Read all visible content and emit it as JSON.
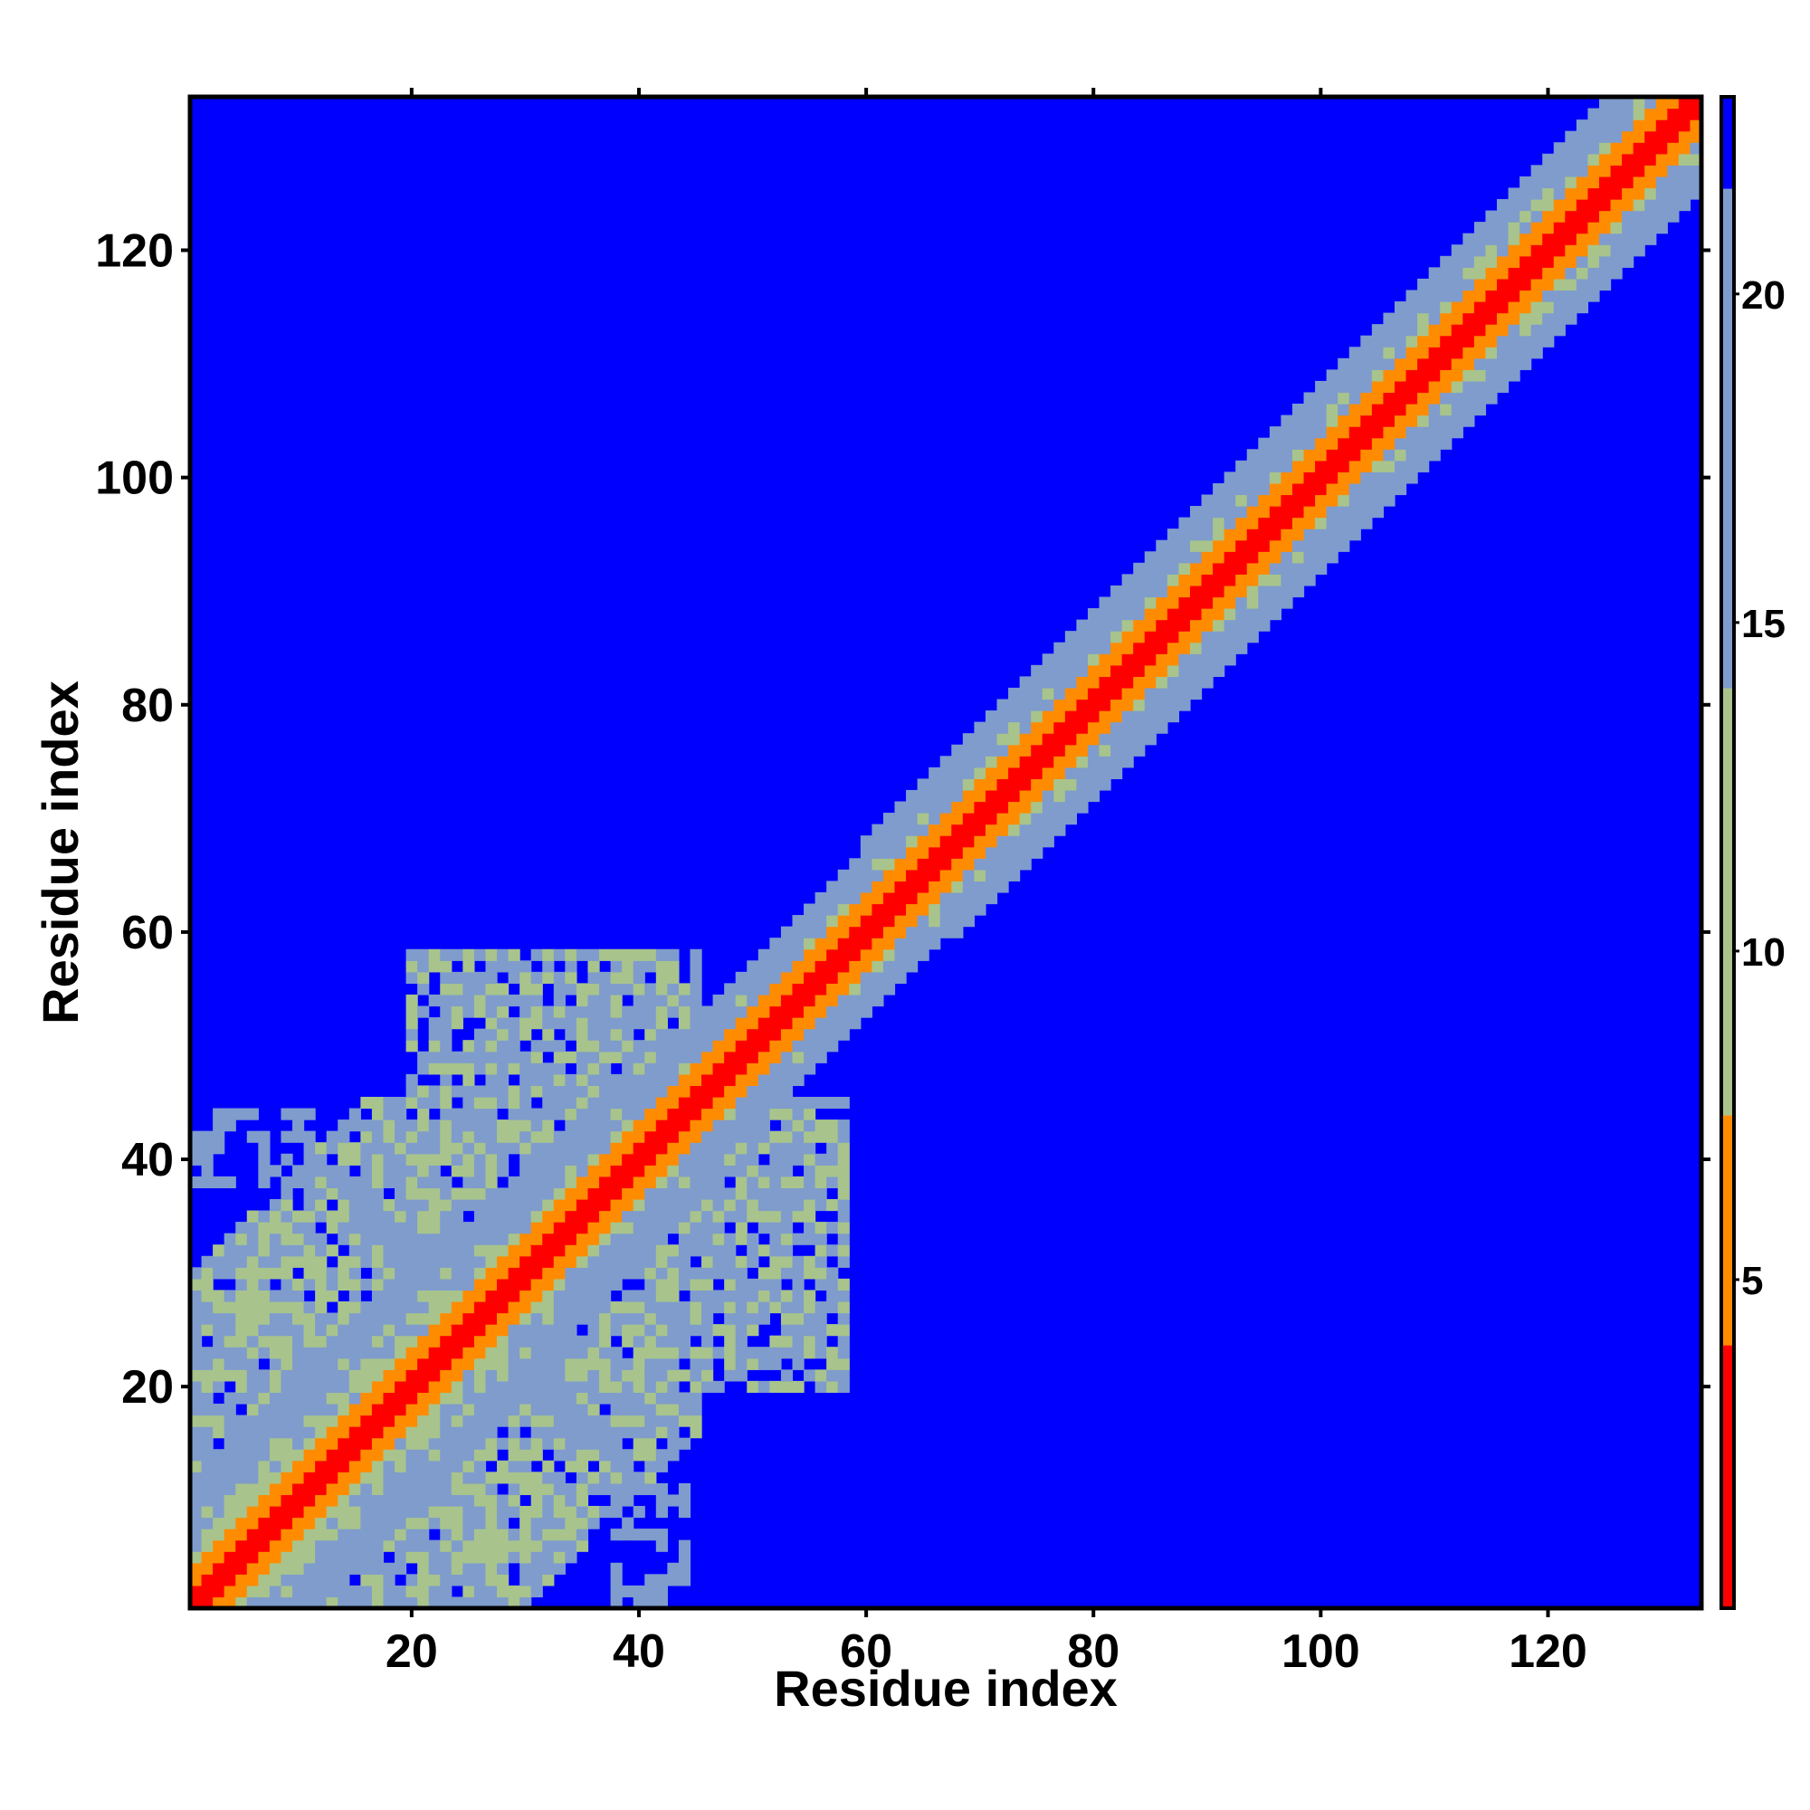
{
  "chart_data": {
    "type": "heatmap",
    "title": "",
    "xlabel": "Residue index",
    "ylabel": "Residue index",
    "xlim": [
      0.5,
      133.5
    ],
    "ylim": [
      0.5,
      133.5
    ],
    "n_residues": 133,
    "x_ticks": [
      20,
      40,
      60,
      80,
      100,
      120
    ],
    "y_ticks": [
      20,
      40,
      60,
      80,
      100,
      120
    ],
    "x_tick_labels": [
      "20",
      "40",
      "60",
      "80",
      "100",
      "120"
    ],
    "y_tick_labels": [
      "20",
      "40",
      "60",
      "80",
      "100",
      "120"
    ],
    "colorbar": {
      "range": [
        0,
        23
      ],
      "ticks": [
        5,
        10,
        15,
        20
      ],
      "tick_labels": [
        "5",
        "10",
        "15",
        "20"
      ],
      "bands": [
        {
          "from": 0,
          "to": 4,
          "color": "#ff0000"
        },
        {
          "from": 4,
          "to": 7.5,
          "color": "#ff8c00"
        },
        {
          "from": 7.5,
          "to": 14,
          "color": "#a8c48c"
        },
        {
          "from": 14,
          "to": 21.6,
          "color": "#7f9ccc"
        },
        {
          "from": 21.6,
          "to": 23,
          "color": "#0000ff"
        }
      ]
    },
    "description_of_matrix": "Symmetric residue-residue distance map; near diagonal values 0-4 (red), bands of 4-7.5 (orange), broader region of 8-21 around diagonal widening for residues 1-60 with off-diagonal contact patches near (1-30, 1-45) and (30-55, 20-58); elsewhere >21.6 (blue)."
  }
}
